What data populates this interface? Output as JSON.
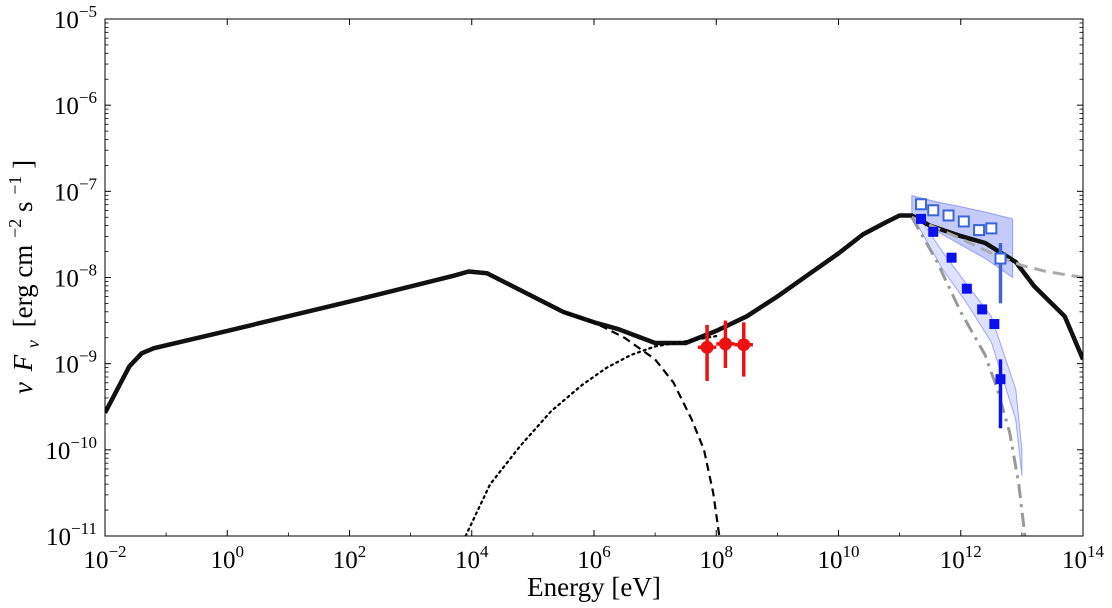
{
  "chart_data": {
    "type": "line",
    "xscale": "log",
    "yscale": "log",
    "xlim_exp": [
      -2,
      14
    ],
    "ylim_exp": [
      -11,
      -5
    ],
    "x_tick_base": "10",
    "x_tick_exponents": [
      "−2",
      "0",
      "2",
      "4",
      "6",
      "8",
      "10",
      "12",
      "14"
    ],
    "y_tick_base": "10",
    "y_tick_exponents": [
      "−11",
      "−10",
      "−9",
      "−8",
      "−7",
      "−6",
      "−5"
    ],
    "xlabel": "Energy [eV]",
    "ylabel": {
      "nu": "ν",
      "F": "F",
      "nu_sub": "ν",
      "unit_open": "[erg cm",
      "exp1": "−2",
      "mid": " s",
      "exp2": "−1",
      "close": "]"
    },
    "series": [
      {
        "name": "total-model",
        "style": "solid",
        "color": "#111111",
        "width": 4.5,
        "points": [
          [
            -2,
            -9.57
          ],
          [
            -1.6,
            -9.03
          ],
          [
            -1.4,
            -8.88
          ],
          [
            -1.2,
            -8.82
          ],
          [
            0,
            -8.62
          ],
          [
            2,
            -8.28
          ],
          [
            3.7,
            -7.98
          ],
          [
            3.95,
            -7.93
          ],
          [
            4.25,
            -7.95
          ],
          [
            5.5,
            -8.4
          ],
          [
            6,
            -8.52
          ],
          [
            6.4,
            -8.6
          ],
          [
            7,
            -8.76
          ],
          [
            7.5,
            -8.76
          ],
          [
            8,
            -8.62
          ],
          [
            8.5,
            -8.45
          ],
          [
            9,
            -8.22
          ],
          [
            9.5,
            -7.97
          ],
          [
            10,
            -7.72
          ],
          [
            10.4,
            -7.5
          ],
          [
            10.8,
            -7.35
          ],
          [
            11,
            -7.28
          ],
          [
            11.2,
            -7.28
          ],
          [
            11.5,
            -7.4
          ],
          [
            12,
            -7.52
          ],
          [
            12.4,
            -7.6
          ],
          [
            12.9,
            -7.82
          ],
          [
            13.2,
            -8.1
          ],
          [
            13.7,
            -8.45
          ],
          [
            14,
            -8.95
          ]
        ]
      },
      {
        "name": "synchrotron-component",
        "style": "dashed",
        "color": "#000000",
        "width": 2.2,
        "points": [
          [
            5.5,
            -8.4
          ],
          [
            6,
            -8.52
          ],
          [
            6.5,
            -8.7
          ],
          [
            7,
            -8.95
          ],
          [
            7.3,
            -9.22
          ],
          [
            7.6,
            -9.65
          ],
          [
            7.8,
            -10.0
          ],
          [
            7.95,
            -10.5
          ],
          [
            8.05,
            -11.0
          ],
          [
            8.1,
            -11.2
          ]
        ]
      },
      {
        "name": "inverse-compton-component",
        "style": "dotted",
        "color": "#000000",
        "width": 2.2,
        "points": [
          [
            3.9,
            -11.0
          ],
          [
            4.3,
            -10.4
          ],
          [
            4.8,
            -9.95
          ],
          [
            5.3,
            -9.55
          ],
          [
            5.8,
            -9.25
          ],
          [
            6.2,
            -9.05
          ],
          [
            6.6,
            -8.9
          ],
          [
            7,
            -8.8
          ],
          [
            7.5,
            -8.74
          ],
          [
            8,
            -8.68
          ]
        ]
      },
      {
        "name": "intrinsic-spectrum",
        "style": "dashed-gray",
        "color": "#aaaaaa",
        "width": 3,
        "points": [
          [
            11.2,
            -7.3
          ],
          [
            12,
            -7.55
          ],
          [
            12.6,
            -7.75
          ],
          [
            13,
            -7.86
          ],
          [
            13.4,
            -7.93
          ],
          [
            14,
            -8.0
          ]
        ]
      },
      {
        "name": "absorbed-spectrum",
        "style": "dashdot-gray",
        "color": "#999999",
        "width": 3,
        "points": [
          [
            11.2,
            -7.3
          ],
          [
            11.6,
            -7.8
          ],
          [
            12,
            -8.4
          ],
          [
            12.4,
            -8.9
          ],
          [
            12.6,
            -9.3
          ],
          [
            12.8,
            -9.8
          ],
          [
            12.95,
            -10.4
          ],
          [
            13.05,
            -11.0
          ],
          [
            13.1,
            -11.2
          ]
        ]
      }
    ],
    "points": [
      {
        "name": "fermi-lat",
        "marker": "circle",
        "color": "#ee1111",
        "data": [
          {
            "x": 7.85,
            "y": -8.81,
            "ylo": -9.2,
            "yhi": -8.55,
            "xlo": 7.7,
            "xhi": 8.0
          },
          {
            "x": 8.15,
            "y": -8.77,
            "ylo": -9.05,
            "yhi": -8.5,
            "xlo": 8.0,
            "xhi": 8.3
          },
          {
            "x": 8.45,
            "y": -8.78,
            "ylo": -9.15,
            "yhi": -8.52,
            "xlo": 8.3,
            "xhi": 8.6
          }
        ]
      },
      {
        "name": "observed-vhe",
        "marker": "filled-square",
        "color": "#0a10ee",
        "data": [
          {
            "x": 11.35,
            "y": -7.32
          },
          {
            "x": 11.55,
            "y": -7.47
          },
          {
            "x": 11.85,
            "y": -7.77
          },
          {
            "x": 12.1,
            "y": -8.13
          },
          {
            "x": 12.35,
            "y": -8.37
          },
          {
            "x": 12.55,
            "y": -8.54
          },
          {
            "x": 12.65,
            "y": -9.18,
            "ylo": -9.75,
            "yhi": -8.95
          }
        ]
      },
      {
        "name": "deabsorbed-vhe",
        "marker": "open-square",
        "color": "#3a66d8",
        "data": [
          {
            "x": 11.35,
            "y": -7.15
          },
          {
            "x": 11.55,
            "y": -7.22
          },
          {
            "x": 11.8,
            "y": -7.28
          },
          {
            "x": 12.05,
            "y": -7.35
          },
          {
            "x": 12.3,
            "y": -7.45
          },
          {
            "x": 12.5,
            "y": -7.43
          },
          {
            "x": 12.65,
            "y": -7.78,
            "ylo": -8.3,
            "yhi": -7.6
          }
        ]
      }
    ],
    "bands": [
      {
        "name": "deabsorbed-butterfly",
        "color": "#4a5cf0",
        "opacity": 0.32,
        "upper": [
          [
            11.2,
            -7.05
          ],
          [
            11.6,
            -7.12
          ],
          [
            12,
            -7.18
          ],
          [
            12.4,
            -7.24
          ],
          [
            12.85,
            -7.32
          ]
        ],
        "lower": [
          [
            11.2,
            -7.28
          ],
          [
            11.6,
            -7.46
          ],
          [
            12,
            -7.62
          ],
          [
            12.4,
            -7.78
          ],
          [
            12.85,
            -8.0
          ]
        ]
      },
      {
        "name": "observed-butterfly",
        "color": "#4a5cf0",
        "opacity": 0.18,
        "upper": [
          [
            11.3,
            -7.28
          ],
          [
            11.7,
            -7.7
          ],
          [
            12.1,
            -8.08
          ],
          [
            12.5,
            -8.45
          ],
          [
            12.9,
            -9.3
          ],
          [
            13.0,
            -10.0
          ]
        ],
        "lower": [
          [
            11.3,
            -7.4
          ],
          [
            11.7,
            -7.9
          ],
          [
            12.1,
            -8.3
          ],
          [
            12.5,
            -8.75
          ],
          [
            12.9,
            -9.65
          ],
          [
            13.0,
            -10.3
          ]
        ]
      }
    ]
  }
}
